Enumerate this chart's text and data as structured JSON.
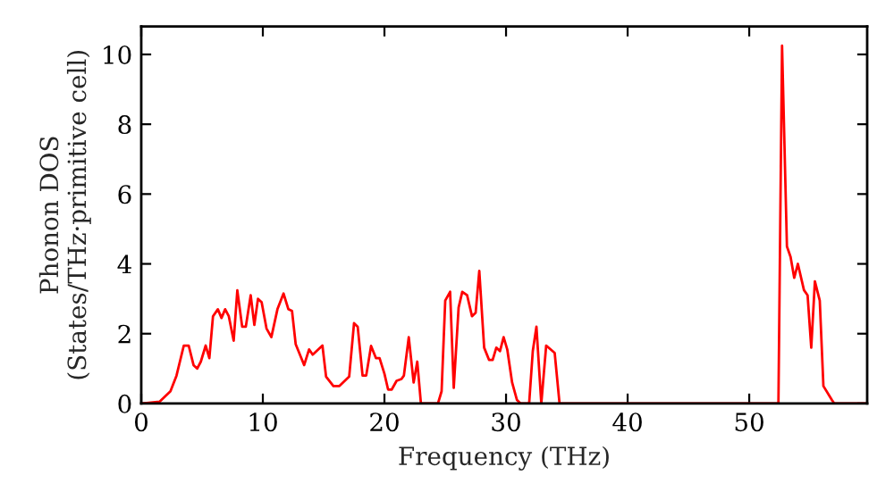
{
  "chart_data": {
    "type": "line",
    "xlabel": "Frequency (THz)",
    "ylabel": "Phonon DOS\n(States/THz·primitive cell)",
    "xlim": [
      0,
      59.7
    ],
    "ylim": [
      0,
      10.8
    ],
    "xticks": [
      0,
      10,
      20,
      30,
      40,
      50
    ],
    "yticks": [
      0,
      2,
      4,
      6,
      8,
      10
    ],
    "grid": false,
    "marker": "none",
    "line_style": "solid",
    "series": [
      {
        "color": "#ff0000",
        "x": [
          0.1,
          1.5,
          2.4,
          2.9,
          3.5,
          3.9,
          4.3,
          4.6,
          4.9,
          5.3,
          5.6,
          5.9,
          6.3,
          6.6,
          6.9,
          7.2,
          7.6,
          7.9,
          8.3,
          8.6,
          9.0,
          9.3,
          9.6,
          9.9,
          10.3,
          10.7,
          11.2,
          11.7,
          12.1,
          12.4,
          12.7,
          13.4,
          13.8,
          14.1,
          14.9,
          15.2,
          15.8,
          16.3,
          17.1,
          17.5,
          17.8,
          18.2,
          18.5,
          18.9,
          19.3,
          19.6,
          20.0,
          20.3,
          20.6,
          21.0,
          21.4,
          21.6,
          22.0,
          22.4,
          22.7,
          23.0,
          24.4,
          24.7,
          25.0,
          25.4,
          25.7,
          26.1,
          26.4,
          26.8,
          27.2,
          27.5,
          27.8,
          28.2,
          28.6,
          28.9,
          29.2,
          29.5,
          29.8,
          30.1,
          30.5,
          30.9,
          31.2,
          31.9,
          32.2,
          32.5,
          32.9,
          33.3,
          34.0,
          34.4,
          52.4,
          52.7,
          53.1,
          53.4,
          53.7,
          54.0,
          54.5,
          54.8,
          55.1,
          55.4,
          55.8,
          56.1,
          56.8,
          57.0,
          59.7
        ],
        "values": [
          0,
          0.05,
          0.35,
          0.8,
          1.66,
          1.66,
          1.1,
          1.0,
          1.2,
          1.66,
          1.3,
          2.5,
          2.7,
          2.45,
          2.7,
          2.5,
          1.8,
          3.24,
          2.2,
          2.2,
          3.1,
          2.25,
          3.0,
          2.9,
          2.15,
          1.9,
          2.7,
          3.15,
          2.7,
          2.65,
          1.7,
          1.1,
          1.55,
          1.4,
          1.66,
          0.77,
          0.5,
          0.5,
          0.77,
          2.3,
          2.2,
          0.8,
          0.8,
          1.65,
          1.3,
          1.3,
          0.85,
          0.4,
          0.4,
          0.65,
          0.7,
          0.8,
          1.9,
          0.6,
          1.2,
          0,
          0,
          0.35,
          2.95,
          3.2,
          0.45,
          2.75,
          3.2,
          3.1,
          2.5,
          2.6,
          3.8,
          1.6,
          1.25,
          1.25,
          1.6,
          1.5,
          1.9,
          1.55,
          0.6,
          0.1,
          0,
          0,
          1.5,
          2.2,
          0,
          1.66,
          1.45,
          0,
          0,
          10.25,
          4.5,
          4.2,
          3.6,
          4.0,
          3.25,
          3.1,
          1.6,
          3.5,
          2.95,
          0.5,
          0.1,
          0,
          0
        ]
      }
    ]
  }
}
